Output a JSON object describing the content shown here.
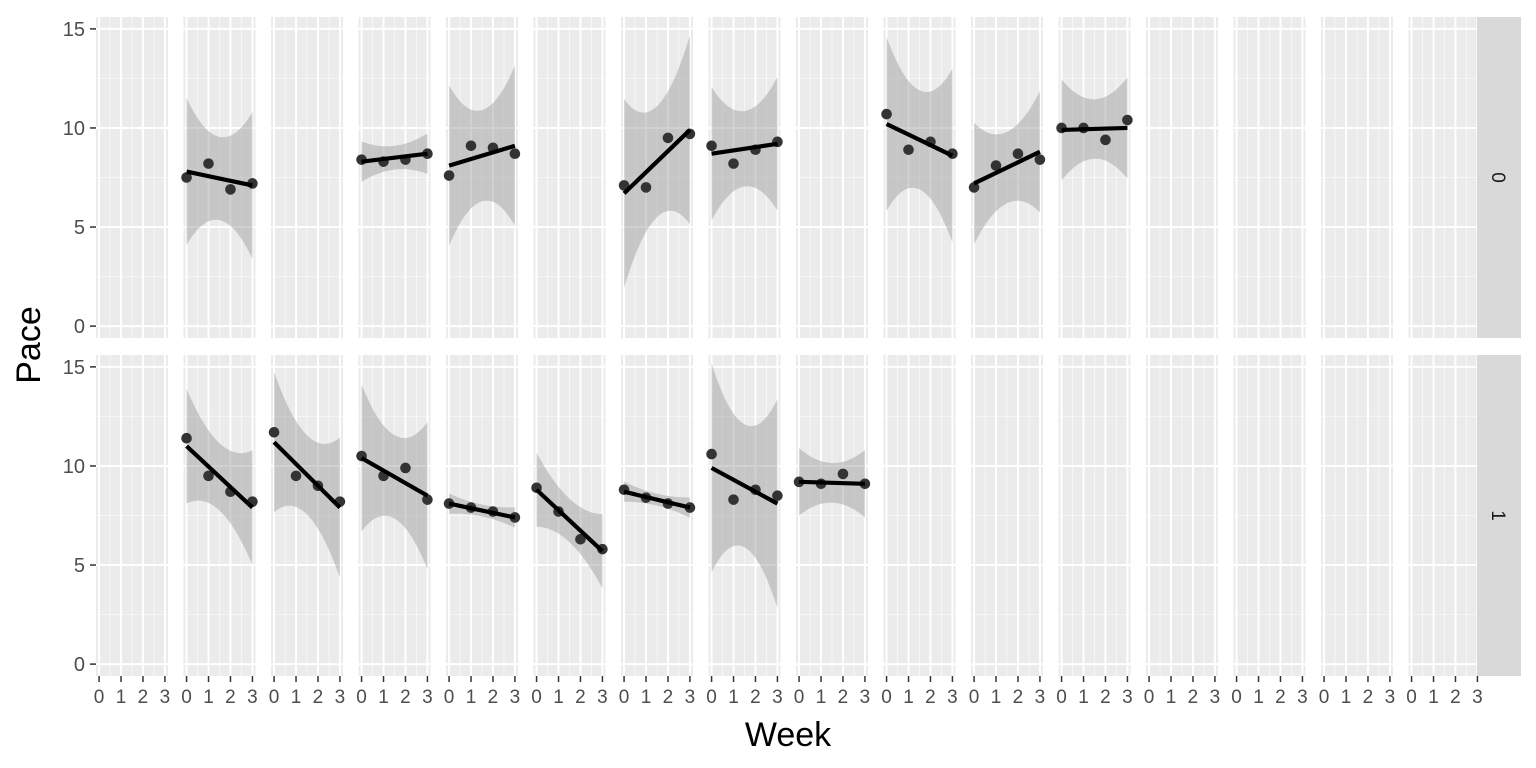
{
  "chart_data": {
    "type": "scatter",
    "description_type": "faceted scatter with linear regression lines and confidence bands",
    "xlabel": "Week",
    "ylabel": "Pace",
    "xlim": [
      0,
      3
    ],
    "ylim": [
      0,
      15
    ],
    "x_ticks": [
      "0",
      "1",
      "2",
      "3"
    ],
    "y_ticks": [
      "0",
      "5",
      "10",
      "15"
    ],
    "grid": true,
    "row_strips": [
      "0",
      "1"
    ],
    "x": [
      0,
      1,
      2,
      3
    ],
    "facets": [
      {
        "row": "0",
        "col": 1,
        "values": [
          7.5,
          8.2,
          6.9,
          7.2
        ],
        "fit": [
          7.8,
          7.1
        ],
        "band": [
          2.2,
          2.1
        ]
      },
      {
        "row": "0",
        "col": 2,
        "values": null
      },
      {
        "row": "0",
        "col": 3,
        "values": [
          8.4,
          8.3,
          8.4,
          8.7
        ],
        "fit": [
          8.3,
          8.7
        ],
        "band": [
          0.6,
          0.6
        ]
      },
      {
        "row": "0",
        "col": 4,
        "values": [
          7.6,
          9.1,
          9.0,
          8.7
        ],
        "fit": [
          8.1,
          9.1
        ],
        "band": [
          2.4,
          2.3
        ]
      },
      {
        "row": "0",
        "col": 5,
        "values": null
      },
      {
        "row": "0",
        "col": 6,
        "values": [
          7.1,
          7.0,
          9.5,
          9.7
        ],
        "fit": [
          6.7,
          9.9
        ],
        "band": [
          2.8,
          2.8
        ]
      },
      {
        "row": "0",
        "col": 7,
        "values": [
          9.1,
          8.2,
          8.9,
          9.3
        ],
        "fit": [
          8.7,
          9.2
        ],
        "band": [
          2.0,
          1.9
        ]
      },
      {
        "row": "0",
        "col": 8,
        "values": null
      },
      {
        "row": "0",
        "col": 9,
        "values": [
          10.7,
          8.9,
          9.3,
          8.7
        ],
        "fit": [
          10.2,
          8.6
        ],
        "band": [
          2.6,
          2.5
        ]
      },
      {
        "row": "0",
        "col": 10,
        "values": [
          7.0,
          8.1,
          8.7,
          8.4
        ],
        "fit": [
          7.2,
          8.8
        ],
        "band": [
          1.8,
          1.8
        ]
      },
      {
        "row": "0",
        "col": 11,
        "values": [
          10.0,
          10.0,
          9.4,
          10.4
        ],
        "fit": [
          9.9,
          10.0
        ],
        "band": [
          1.5,
          1.5
        ]
      },
      {
        "row": "1",
        "col": 1,
        "values": [
          11.4,
          9.5,
          8.7,
          8.2
        ],
        "fit": [
          11.0,
          7.9
        ],
        "band": [
          1.7,
          1.7
        ]
      },
      {
        "row": "1",
        "col": 2,
        "values": [
          11.7,
          9.5,
          9.0,
          8.2
        ],
        "fit": [
          11.2,
          7.9
        ],
        "band": [
          2.1,
          2.0
        ]
      },
      {
        "row": "1",
        "col": 3,
        "values": [
          10.5,
          9.5,
          9.9,
          8.3
        ],
        "fit": [
          10.4,
          8.5
        ],
        "band": [
          2.2,
          2.1
        ]
      },
      {
        "row": "1",
        "col": 4,
        "values": [
          8.1,
          7.9,
          7.7,
          7.4
        ],
        "fit": [
          8.1,
          7.4
        ],
        "band": [
          0.3,
          0.3
        ]
      },
      {
        "row": "1",
        "col": 5,
        "values": [
          8.9,
          7.7,
          6.3,
          5.8
        ],
        "fit": [
          8.8,
          5.7
        ],
        "band": [
          1.1,
          1.1
        ]
      },
      {
        "row": "1",
        "col": 6,
        "values": [
          8.8,
          8.4,
          8.1,
          7.9
        ],
        "fit": [
          8.7,
          7.9
        ],
        "band": [
          0.3,
          0.3
        ]
      },
      {
        "row": "1",
        "col": 7,
        "values": [
          10.6,
          8.3,
          8.8,
          8.5
        ],
        "fit": [
          9.9,
          8.1
        ],
        "band": [
          3.1,
          3.1
        ]
      },
      {
        "row": "1",
        "col": 8,
        "values": [
          9.2,
          9.1,
          9.6,
          9.1
        ],
        "fit": [
          9.2,
          9.1
        ],
        "band": [
          1.0,
          1.0
        ]
      }
    ]
  },
  "colors": {
    "panel": "#ebebeb",
    "grid_major": "#ffffff",
    "grid_minor": "#f5f5f5",
    "strip": "#d9d9d9",
    "point": "#333333",
    "fit": "#000000",
    "band": "#999999",
    "axis_text": "#4d4d4d"
  }
}
